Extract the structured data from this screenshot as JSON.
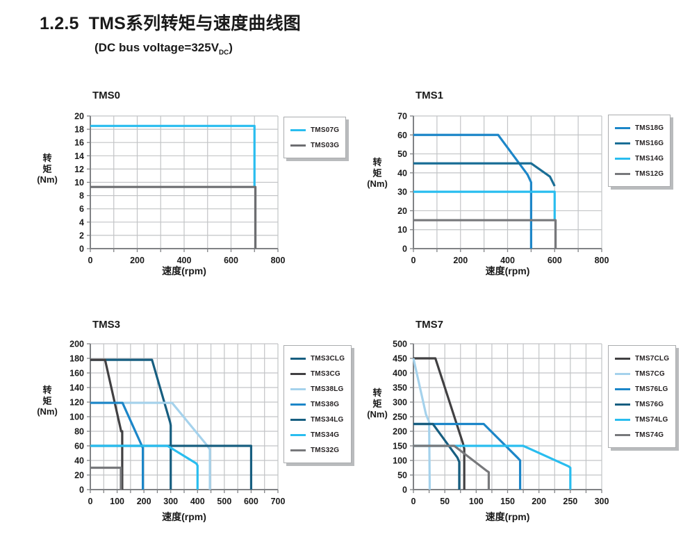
{
  "page": {
    "heading_number": "1.2.5",
    "heading_title": "TMS系列转矩与速度曲线图",
    "subtitle_prefix": "(DC bus voltage=325V",
    "subtitle_sub": "DC",
    "subtitle_suffix": ")"
  },
  "colors": {
    "cyan": "#29BDEF",
    "medium_blue": "#1C86C8",
    "steel_blue": "#1A6E96",
    "dark_navy": "#175E80",
    "charcoal": "#414042",
    "dark_gray": "#6D6E71",
    "gray": "#77787B",
    "pale_blue": "#A5D2EC",
    "gridline": "#C2C4C6",
    "axis": "#808285"
  },
  "chart_data": [
    {
      "type": "line",
      "title": "TMS0",
      "xlabel": "速度(rpm)",
      "ylabel": "转矩(Nm)",
      "ylabel_lines": [
        "转",
        "矩",
        "(Nm)"
      ],
      "xlim": [
        0,
        800
      ],
      "ylim": [
        0,
        20
      ],
      "x_tick_step": 200,
      "x_grid_step": 100,
      "y_tick_step": 2,
      "y_grid_step": 2,
      "grid": true,
      "legend_position": "right",
      "series": [
        {
          "name": "TMS07G",
          "color": "#29BDEF",
          "points": [
            [
              0,
              18.5
            ],
            [
              700,
              18.5
            ],
            [
              700,
              9.3
            ]
          ]
        },
        {
          "name": "TMS03G",
          "color": "#6D6E71",
          "points": [
            [
              0,
              9.3
            ],
            [
              704,
              9.3
            ],
            [
              704,
              0
            ]
          ]
        }
      ]
    },
    {
      "type": "line",
      "title": "TMS1",
      "xlabel": "速度(rpm)",
      "ylabel": "转矩(Nm)",
      "ylabel_lines": [
        "转",
        "矩",
        "(Nm)"
      ],
      "xlim": [
        0,
        800
      ],
      "ylim": [
        0,
        70
      ],
      "x_tick_step": 200,
      "x_grid_step": 100,
      "y_tick_step": 10,
      "y_grid_step": 10,
      "grid": true,
      "legend_position": "right",
      "series": [
        {
          "name": "TMS18G",
          "color": "#1C86C8",
          "points": [
            [
              0,
              60
            ],
            [
              360,
              60
            ],
            [
              485,
              39
            ],
            [
              500,
              35
            ],
            [
              500,
              0
            ]
          ]
        },
        {
          "name": "TMS16G",
          "color": "#1A6E96",
          "points": [
            [
              0,
              45
            ],
            [
              500,
              45
            ],
            [
              580,
              38
            ],
            [
              600,
              33
            ]
          ]
        },
        {
          "name": "TMS14G",
          "color": "#29BDEF",
          "points": [
            [
              0,
              30
            ],
            [
              600,
              30
            ],
            [
              600,
              15
            ]
          ]
        },
        {
          "name": "TMS12G",
          "color": "#77787B",
          "points": [
            [
              0,
              15
            ],
            [
              604,
              15
            ],
            [
              604,
              0
            ]
          ]
        }
      ]
    },
    {
      "type": "line",
      "title": "TMS3",
      "xlabel": "速度(rpm)",
      "ylabel": "转矩(Nm)",
      "ylabel_lines": [
        "转",
        "矩",
        "(Nm)"
      ],
      "xlim": [
        0,
        700
      ],
      "ylim": [
        0,
        200
      ],
      "x_tick_step": 100,
      "x_grid_step": 50,
      "y_tick_step": 20,
      "y_grid_step": 20,
      "grid": true,
      "legend_position": "right",
      "series": [
        {
          "name": "TMS3CLG",
          "color": "#175E80",
          "points": [
            [
              0,
              178
            ],
            [
              230,
              178
            ],
            [
              298,
              92
            ],
            [
              300,
              88
            ],
            [
              300,
              0
            ]
          ]
        },
        {
          "name": "TMS3CG",
          "color": "#414042",
          "points": [
            [
              0,
              178
            ],
            [
              55,
              178
            ],
            [
              112,
              85
            ],
            [
              115,
              80
            ],
            [
              119,
              80
            ],
            [
              119,
              0
            ]
          ]
        },
        {
          "name": "TMS38LG",
          "color": "#A5D2EC",
          "points": [
            [
              0,
              119
            ],
            [
              305,
              119
            ],
            [
              437,
              60
            ],
            [
              446,
              55
            ],
            [
              446,
              0
            ]
          ]
        },
        {
          "name": "TMS38G",
          "color": "#1C86C8",
          "points": [
            [
              0,
              119
            ],
            [
              120,
              119
            ],
            [
              190,
              62
            ],
            [
              196,
              57
            ],
            [
              196,
              0
            ]
          ]
        },
        {
          "name": "TMS34LG",
          "color": "#175E80",
          "points": [
            [
              0,
              60
            ],
            [
              600,
              60
            ],
            [
              600,
              0
            ]
          ]
        },
        {
          "name": "TMS34G",
          "color": "#29BDEF",
          "points": [
            [
              0,
              60
            ],
            [
              288,
              60
            ],
            [
              395,
              36
            ],
            [
              400,
              33
            ],
            [
              400,
              0
            ]
          ]
        },
        {
          "name": "TMS32G",
          "color": "#77787B",
          "points": [
            [
              0,
              30
            ],
            [
              114,
              30
            ],
            [
              114,
              0
            ]
          ]
        }
      ]
    },
    {
      "type": "line",
      "title": "TMS7",
      "xlabel": "速度(rpm)",
      "ylabel": "转矩(Nm)",
      "ylabel_lines": [
        "转",
        "矩",
        "(Nm)"
      ],
      "xlim": [
        0,
        300
      ],
      "ylim": [
        0,
        500
      ],
      "x_tick_step": 50,
      "x_grid_step": 25,
      "y_tick_step": 50,
      "y_grid_step": 50,
      "grid": true,
      "legend_position": "right",
      "series": [
        {
          "name": "TMS7CLG",
          "color": "#414042",
          "points": [
            [
              0,
              450
            ],
            [
              35,
              450
            ],
            [
              79,
              158
            ],
            [
              81,
              140
            ],
            [
              81,
              0
            ]
          ]
        },
        {
          "name": "TMS7CG",
          "color": "#A5D2EC",
          "points": [
            [
              0,
              450
            ],
            [
              20,
              258
            ],
            [
              25,
              232
            ],
            [
              26,
              0
            ]
          ]
        },
        {
          "name": "TMS76LG",
          "color": "#1C86C8",
          "points": [
            [
              0,
              225
            ],
            [
              112,
              225
            ],
            [
              167,
              107
            ],
            [
              170,
              100
            ],
            [
              170,
              0
            ]
          ]
        },
        {
          "name": "TMS76G",
          "color": "#175E80",
          "points": [
            [
              0,
              225
            ],
            [
              31,
              225
            ],
            [
              70,
              110
            ],
            [
              73,
              95
            ],
            [
              73,
              0
            ]
          ]
        },
        {
          "name": "TMS74LG",
          "color": "#29BDEF",
          "points": [
            [
              0,
              150
            ],
            [
              175,
              150
            ],
            [
              247,
              80
            ],
            [
              250,
              75
            ],
            [
              250,
              0
            ]
          ]
        },
        {
          "name": "TMS74G",
          "color": "#77787B",
          "points": [
            [
              0,
              150
            ],
            [
              65,
              150
            ],
            [
              117,
              64
            ],
            [
              120,
              60
            ],
            [
              120,
              0
            ]
          ]
        }
      ]
    }
  ]
}
